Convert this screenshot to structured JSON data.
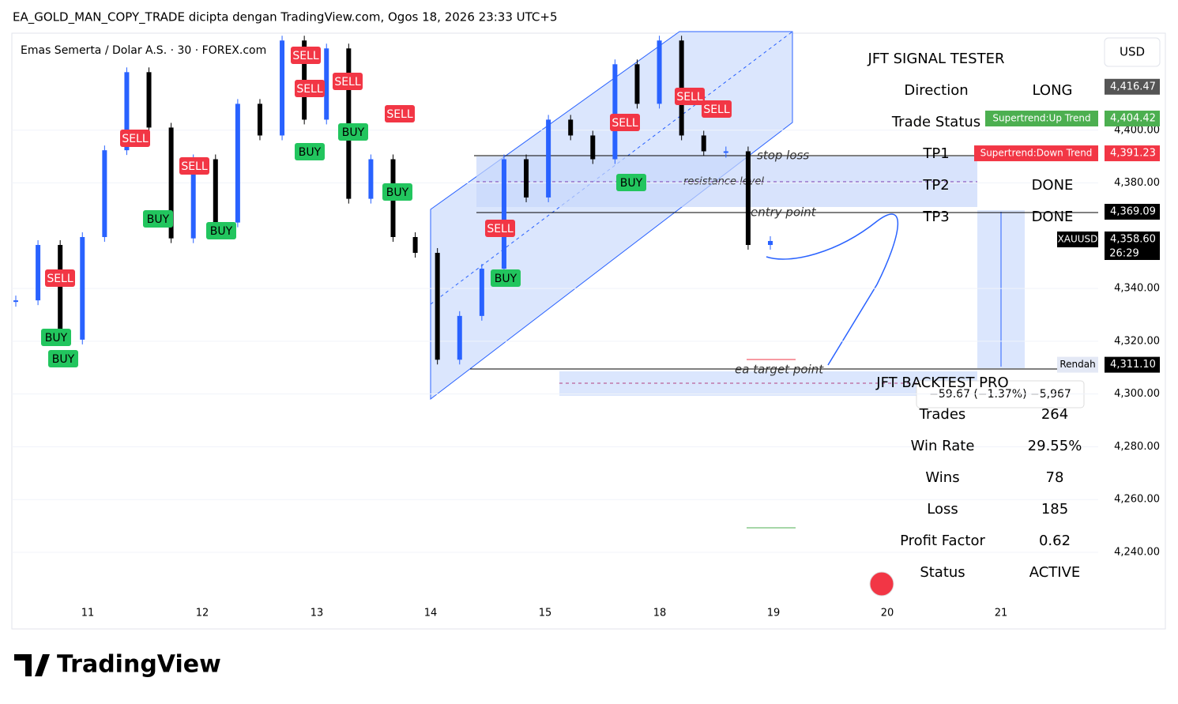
{
  "header": {
    "title": "EA_GOLD_MAN_COPY_TRADE dicipta dengan TradingView.com, Ogos 18, 2026 23:33 UTC+5",
    "symbol": "Emas Semerta / Dolar A.S. · 30 · FOREX.com",
    "currency": "USD",
    "brand": "TradingView"
  },
  "price_axis": {
    "ticks": [
      {
        "value": 4400,
        "label": "4,400.00"
      },
      {
        "value": 4380,
        "label": "4,380.00"
      },
      {
        "value": 4340,
        "label": "4,340.00"
      },
      {
        "value": 4320,
        "label": "4,320.00"
      },
      {
        "value": 4300,
        "label": "4,300.00"
      },
      {
        "value": 4280,
        "label": "4,280.00"
      },
      {
        "value": 4260,
        "label": "4,260.00"
      },
      {
        "value": 4240,
        "label": "4,240.00"
      }
    ],
    "tags": [
      {
        "value": 4416.47,
        "value_label": "4,416.47",
        "color": "#555555"
      },
      {
        "label": "Supertrend:Up Trend",
        "value": 4404.42,
        "value_label": "4,404.42",
        "color": "#4caf50"
      },
      {
        "label": "Supertrend:Down Trend",
        "value": 4391.23,
        "value_label": "4,391.23",
        "color": "#f23645"
      },
      {
        "value": 4369.09,
        "value_label": "4,369.09",
        "color": "#000000"
      },
      {
        "label": "XAUUSD",
        "value": 4358.6,
        "value_label": "4,358.60",
        "countdown": "26:29",
        "color": "#000000"
      },
      {
        "label": "Rendah",
        "value": 4311.1,
        "value_label": "4,311.10",
        "color": "#000000"
      }
    ]
  },
  "time_axis": {
    "labels": [
      "11",
      "12",
      "13",
      "14",
      "15",
      "18",
      "19",
      "20",
      "21"
    ]
  },
  "candles": {
    "close": [
      4335.5,
      4356.5,
      4320.6,
      4359.5,
      4392.4,
      4422,
      4401,
      4359,
      4389,
      4365,
      4410,
      4398,
      4434,
      4404,
      4431,
      4374,
      4389,
      4359.5,
      4353.5,
      4313,
      4329.6,
      4347.5,
      4389,
      4374.5,
      4404,
      4398,
      4389,
      4425,
      4410,
      4434,
      4398,
      4392,
      4392,
      4356.5,
      4358
    ]
  },
  "signals": [
    "SELL",
    "SELL",
    "BUY",
    "BUY",
    "SELL",
    "SELL",
    "SELL",
    "BUY",
    "BUY",
    "SELL",
    "BUY",
    "SELL",
    "BUY",
    "SELL",
    "SELL",
    "SELL",
    "BUY",
    "SELL",
    "BUY",
    "BUY"
  ],
  "annotations": {
    "stop_loss": "stop loss",
    "resistance": "resistance level",
    "entry": "entry point",
    "target": "ea target point",
    "change": "−59.67 (−1.37%) −5,967"
  },
  "signal_panel": {
    "title": "JFT SIGNAL TESTER",
    "rows": [
      [
        "Direction",
        "LONG"
      ],
      [
        "Trade Status",
        ""
      ],
      [
        "TP1",
        ""
      ],
      [
        "TP2",
        "DONE"
      ],
      [
        "TP3",
        "DONE"
      ]
    ]
  },
  "backtest_panel": {
    "title": "JFT BACKTEST PRO",
    "rows": [
      [
        "Trades",
        "264"
      ],
      [
        "Win Rate",
        "29.55%"
      ],
      [
        "Wins",
        "78"
      ],
      [
        "Loss",
        "185"
      ],
      [
        "Profit Factor",
        "0.62"
      ],
      [
        "Status",
        "ACTIVE"
      ]
    ]
  }
}
